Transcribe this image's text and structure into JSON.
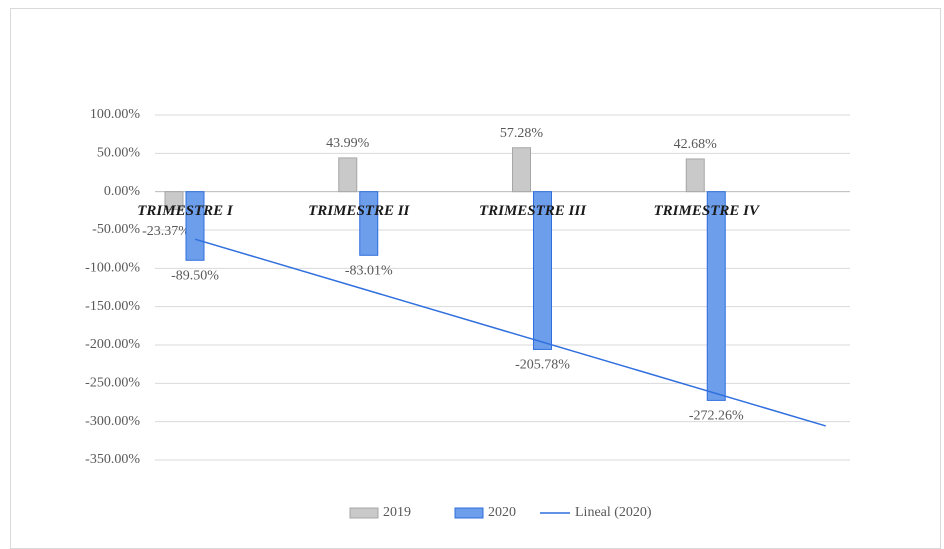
{
  "chart_data": {
    "type": "bar",
    "categories": [
      "TRIMESTRE I",
      "TRIMESTRE II",
      "TRIMESTRE III",
      "TRIMESTRE IV"
    ],
    "series": [
      {
        "name": "2019",
        "color": "#c9c9c9",
        "values": [
          -23.37,
          43.99,
          57.28,
          42.68
        ],
        "value_labels": [
          "-23.37%",
          "43.99%",
          "57.28%",
          "42.68%"
        ]
      },
      {
        "name": "2020",
        "color": "#6d9eeb",
        "values": [
          -89.5,
          -83.01,
          -205.78,
          -272.26
        ],
        "value_labels": [
          "-89.50%",
          "-83.01%",
          "-205.78%",
          "-272.26%"
        ]
      }
    ],
    "trendline": {
      "name": "Lineal (2020)",
      "color": "#2f6fde"
    },
    "ylim": [
      -350,
      100
    ],
    "yticks": [
      {
        "value": 100,
        "label": "100.00%"
      },
      {
        "value": 50,
        "label": "50.00%"
      },
      {
        "value": 0,
        "label": "0.00%"
      },
      {
        "value": -50,
        "label": "-50.00%"
      },
      {
        "value": -100,
        "label": "-100.00%"
      },
      {
        "value": -150,
        "label": "-150.00%"
      },
      {
        "value": -200,
        "label": "-200.00%"
      },
      {
        "value": -250,
        "label": "-250.00%"
      },
      {
        "value": -300,
        "label": "-300.00%"
      },
      {
        "value": -350,
        "label": "-350.00%"
      }
    ],
    "grid": true
  }
}
